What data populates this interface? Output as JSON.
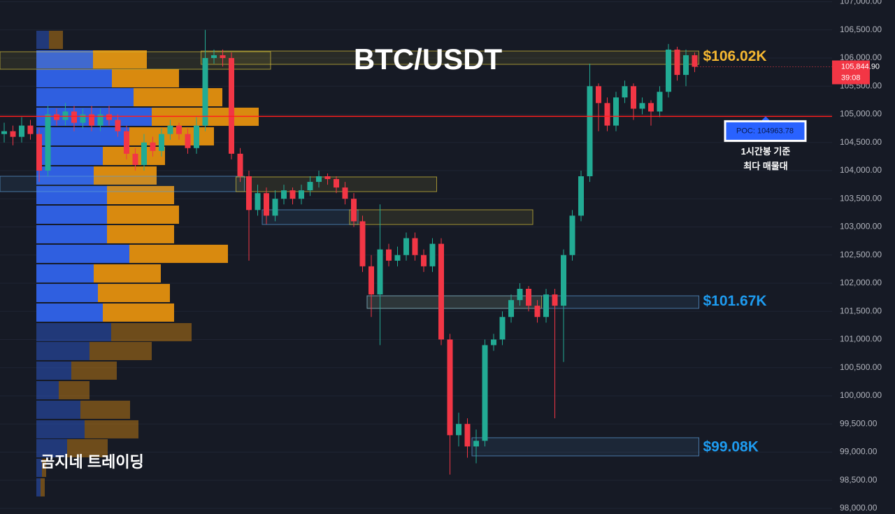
{
  "chart_data": {
    "type": "candlestick",
    "title": "BTC/USDT",
    "watermark": "곰지네 트레이딩",
    "up_color": "#22ab94",
    "down_color": "#f23645",
    "open": [
      104650,
      104700,
      104600,
      104800,
      104650,
      104000,
      105000,
      104900,
      105050,
      104850,
      105000,
      104800,
      105000,
      104900,
      104700,
      104300,
      104100,
      104500,
      104350,
      104650,
      104800,
      104650,
      104400,
      104800,
      106000,
      106050,
      106000,
      104300,
      103900,
      103300,
      103600,
      103200,
      103500,
      103650,
      103500,
      103650,
      103800,
      103900,
      103850,
      103700,
      103500,
      103100,
      102300,
      101800,
      102600,
      102400,
      102500,
      102800,
      102500,
      102300,
      102700,
      101000,
      99300,
      99500,
      99100,
      99200,
      100900,
      101000,
      101400,
      101700,
      101900,
      101600,
      101400,
      101800,
      101600,
      102500,
      103200,
      103900,
      105500,
      105200,
      104800,
      105300,
      105500,
      105100,
      105200,
      105050,
      105400,
      106150,
      105700,
      106050
    ],
    "high": [
      104850,
      104800,
      104950,
      104900,
      104750,
      105150,
      105100,
      105200,
      105150,
      105100,
      105150,
      105100,
      105150,
      105000,
      104800,
      104400,
      104650,
      104600,
      104750,
      104900,
      104850,
      104750,
      104950,
      106500,
      106150,
      106150,
      106100,
      104400,
      104000,
      103750,
      103700,
      103650,
      103750,
      103700,
      103750,
      103900,
      104000,
      103950,
      103900,
      103800,
      103600,
      103200,
      102500,
      103400,
      102700,
      102650,
      102900,
      102900,
      102600,
      102800,
      102800,
      101100,
      99700,
      99600,
      99400,
      101000,
      101100,
      101500,
      101800,
      102000,
      101950,
      101700,
      101900,
      101900,
      102600,
      103300,
      104000,
      105900,
      105550,
      105300,
      105400,
      105600,
      105550,
      105300,
      105250,
      105500,
      106250,
      106200,
      106150,
      106100
    ],
    "low": [
      104500,
      104450,
      104500,
      104550,
      103800,
      103900,
      104800,
      104800,
      104700,
      104750,
      104700,
      104700,
      104800,
      104600,
      104200,
      104000,
      104000,
      104250,
      104250,
      104550,
      104550,
      104300,
      104300,
      104700,
      105900,
      105850,
      104200,
      103800,
      102400,
      103200,
      103050,
      103100,
      103400,
      103400,
      103400,
      103550,
      103700,
      103750,
      103600,
      103400,
      103000,
      102200,
      101400,
      100900,
      102300,
      102300,
      102400,
      102400,
      102200,
      102200,
      100900,
      98600,
      99100,
      98900,
      98800,
      99100,
      100800,
      100900,
      101300,
      101600,
      101500,
      101300,
      101300,
      99600,
      100600,
      102400,
      103100,
      103800,
      104700,
      104700,
      104700,
      105200,
      104900,
      105000,
      104800,
      104950,
      105300,
      105600,
      105500,
      105750
    ],
    "close": [
      104700,
      104600,
      104800,
      104650,
      104000,
      105000,
      104900,
      105050,
      104850,
      105000,
      104800,
      105000,
      104900,
      104700,
      104300,
      104100,
      104500,
      104350,
      104650,
      104800,
      104650,
      104400,
      104800,
      106000,
      106050,
      106000,
      104300,
      103900,
      103300,
      103600,
      103200,
      103500,
      103650,
      103500,
      103650,
      103800,
      103900,
      103850,
      103700,
      103500,
      103100,
      102300,
      101800,
      102600,
      102400,
      102500,
      102800,
      102500,
      102300,
      102700,
      101000,
      99300,
      99500,
      99100,
      99200,
      100900,
      101000,
      101400,
      101700,
      101900,
      101600,
      101400,
      101800,
      101600,
      102500,
      103200,
      103900,
      105500,
      105200,
      104800,
      105300,
      105500,
      105100,
      105200,
      105050,
      105400,
      106150,
      105700,
      106050,
      105845
    ],
    "ylim": [
      97900,
      107031
    ],
    "yticks": [
      {
        "value": 98000,
        "label": "98,000.00"
      },
      {
        "value": 98500,
        "label": "98,500.00"
      },
      {
        "value": 99000,
        "label": "99,000.00"
      },
      {
        "value": 99500,
        "label": "99,500.00"
      },
      {
        "value": 100000,
        "label": "100,000.00"
      },
      {
        "value": 100500,
        "label": "100,500.00"
      },
      {
        "value": 101000,
        "label": "101,000.00"
      },
      {
        "value": 101500,
        "label": "101,500.00"
      },
      {
        "value": 102000,
        "label": "102,000.00"
      },
      {
        "value": 102500,
        "label": "102,500.00"
      },
      {
        "value": 103000,
        "label": "103,000.00"
      },
      {
        "value": 103500,
        "label": "103,500.00"
      },
      {
        "value": 104000,
        "label": "104,000.00"
      },
      {
        "value": 104500,
        "label": "104,500.00"
      },
      {
        "value": 105000,
        "label": "105,000.00"
      },
      {
        "value": 105500,
        "label": "105,500.00"
      },
      {
        "value": 106000,
        "label": "106,000.00"
      },
      {
        "value": 106500,
        "label": "106,500.00"
      },
      {
        "value": 107000,
        "label": "107,000.00"
      }
    ],
    "grid": true,
    "volume_profile": {
      "prices": [
        106323,
        105975,
        105640,
        105304,
        104957,
        104609,
        104261,
        103913,
        103565,
        103217,
        102870,
        102522,
        102174,
        101826,
        101478,
        101130,
        100795,
        100447,
        100099,
        99752,
        99404,
        99068,
        98720,
        98373
      ],
      "buy": [
        18,
        81,
        108,
        139,
        165,
        133,
        95,
        82,
        101,
        101,
        101,
        133,
        82,
        88,
        95,
        107,
        76,
        50,
        32,
        63,
        69,
        44,
        8,
        6
      ],
      "sell": [
        20,
        77,
        96,
        127,
        153,
        121,
        89,
        90,
        96,
        103,
        96,
        141,
        96,
        103,
        102,
        115,
        89,
        65,
        44,
        71,
        77,
        58,
        6,
        6
      ],
      "buy_color": "#2f5fe0",
      "sell_color": "#d98a0f",
      "value_area": [
        101300,
        106150
      ]
    },
    "zones": [
      {
        "top": 106112,
        "bottom": 105801,
        "start": 0,
        "end": 30,
        "color": "#d8c33a"
      },
      {
        "top": 106124,
        "bottom": 105888,
        "start": 23,
        "end": 79,
        "color": "#d8c33a",
        "level": 106020,
        "label": "$106.02K",
        "label_color": "#f5b731"
      },
      {
        "top": 103900,
        "bottom": 103627,
        "start": 0,
        "end": 27,
        "color": "#5b9bd5"
      },
      {
        "top": 103888,
        "bottom": 103627,
        "start": 27,
        "end": 49,
        "color": "#d8c33a"
      },
      {
        "top": 103304,
        "bottom": 103043,
        "start": 30,
        "end": 40,
        "color": "#5b9bd5"
      },
      {
        "top": 103304,
        "bottom": 103043,
        "start": 40,
        "end": 60,
        "color": "#d8c33a"
      },
      {
        "top": 101776,
        "bottom": 101553,
        "start": 42,
        "end": 61,
        "color": "#d8c33a"
      },
      {
        "top": 101776,
        "bottom": 101553,
        "start": 42,
        "end": 79,
        "color": "#5b9bd5",
        "level": 101670,
        "label": "$101.67K",
        "label_color": "#1e9bef"
      },
      {
        "top": 99255,
        "bottom": 98932,
        "start": 54,
        "end": 79,
        "color": "#5b9bd5",
        "level": 99080,
        "label": "$99.08K",
        "label_color": "#1e9bef"
      }
    ],
    "poc": {
      "value": 104963.78,
      "label": "POC: 104963.78",
      "color": "#ff1e1e",
      "note": [
        "1시간봉 기준",
        "최다 매물대"
      ]
    },
    "last_price": {
      "value": 105844.9,
      "label": "105,844.90",
      "countdown": "39:08",
      "color": "#f23645"
    }
  }
}
